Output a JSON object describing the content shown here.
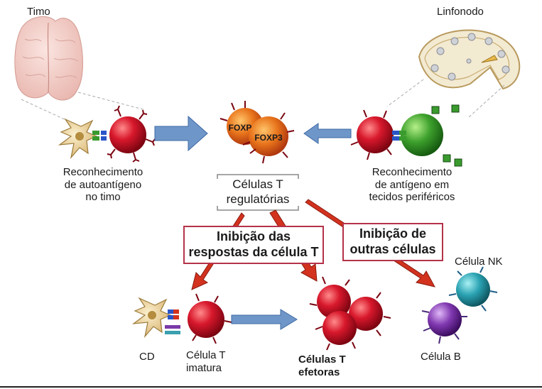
{
  "organs": {
    "thymus": "Timo",
    "lymph_node": "Linfonodo"
  },
  "labels": {
    "thymus_recognition": [
      "Reconhecimento",
      "de autoantígeno",
      "no timo"
    ],
    "peripheral_recognition": [
      "Reconhecimento",
      "de antígeno em",
      "tecidos periféricos"
    ],
    "foxp3": "FOXP3",
    "foxp3_partial": "FOXP",
    "treg": [
      "Células T",
      "regulatórias"
    ],
    "dc": "CD",
    "naive_t": [
      "Célula T",
      "imatura"
    ],
    "effector_t": [
      "Células T",
      "efetoras"
    ],
    "nk_cell": "Célula NK",
    "b_cell": "Célula B"
  },
  "boxes": {
    "inhibit_t": [
      "Inibição das",
      "respostas da célula T"
    ],
    "inhibit_other": [
      "Inibição de",
      "outras células"
    ]
  },
  "colors": {
    "t_cell": "#c8142a",
    "treg": "#e0781e",
    "inhibition_arrow": "#d2321e",
    "blue_arrow": "#5b86c0",
    "box_border": "#b5324a",
    "apc": "#3a9a2e",
    "nk": "#2fa0b0",
    "b_cell": "#7a3aa8"
  }
}
